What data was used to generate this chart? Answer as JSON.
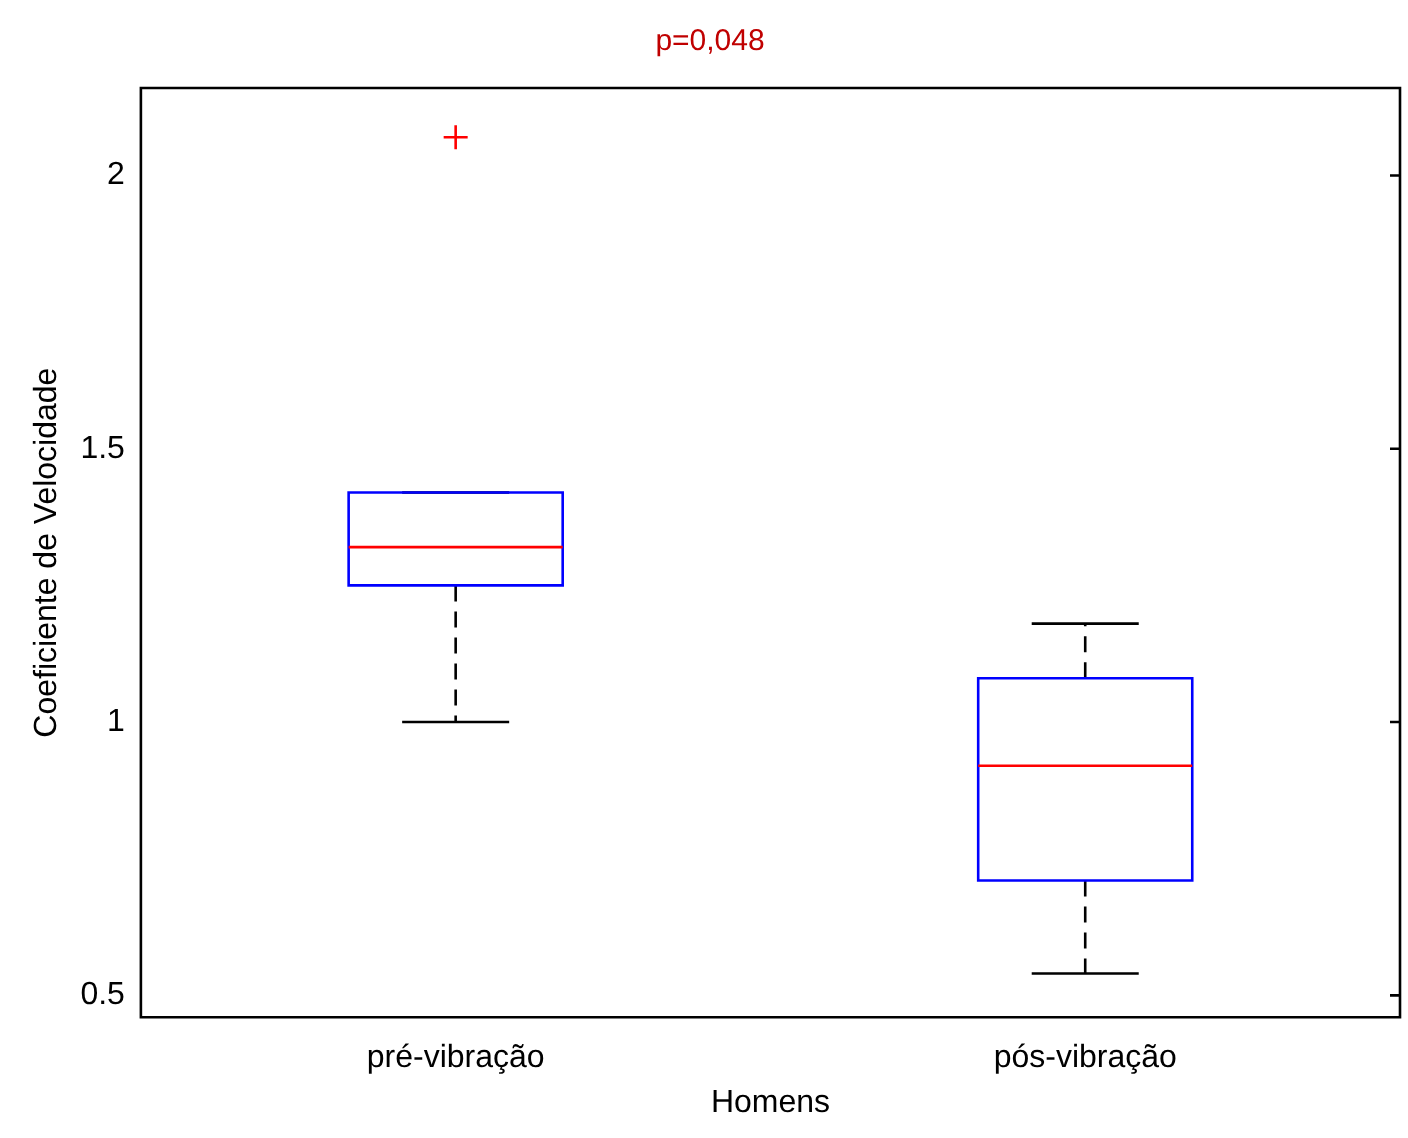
{
  "chart_data": {
    "type": "box",
    "title": "p=0,048",
    "xlabel": "Homens",
    "ylabel": "Coeficiente de Velocidade",
    "categories": [
      "pré-vibração",
      "pós-vibração"
    ],
    "color": "#0000ff",
    "boxes": [
      {
        "low": 1.0,
        "q1": 1.25,
        "median": 1.32,
        "q3": 1.42,
        "high": 1.42,
        "outliers": [
          2.07
        ]
      },
      {
        "low": 0.54,
        "q1": 0.71,
        "median": 0.92,
        "q3": 1.08,
        "high": 1.18
      }
    ],
    "ylim": [
      0.46,
      2.16
    ],
    "yticks": [
      0.5,
      1,
      1.5,
      2
    ],
    "grid": false
  }
}
